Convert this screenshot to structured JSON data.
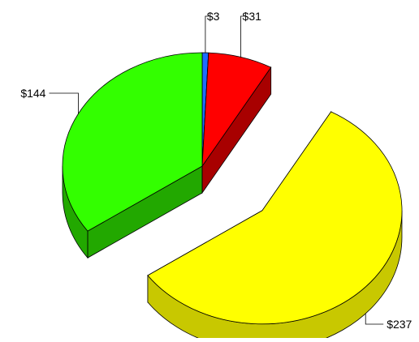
{
  "chart_data": {
    "type": "pie",
    "style": "3d-exploded",
    "title": "",
    "slices": [
      {
        "label": "$3",
        "value": 3,
        "color": "#1e6cff",
        "side_color": "#0c3fa8"
      },
      {
        "label": "$31",
        "value": 31,
        "color": "#ff0000",
        "side_color": "#a80000"
      },
      {
        "label": "$237",
        "value": 237,
        "color": "#ffff00",
        "side_color": "#c8c800",
        "exploded": true
      },
      {
        "label": "$144",
        "value": 144,
        "color": "#33ff00",
        "side_color": "#22a800"
      }
    ],
    "legend": "none",
    "grid": false
  }
}
